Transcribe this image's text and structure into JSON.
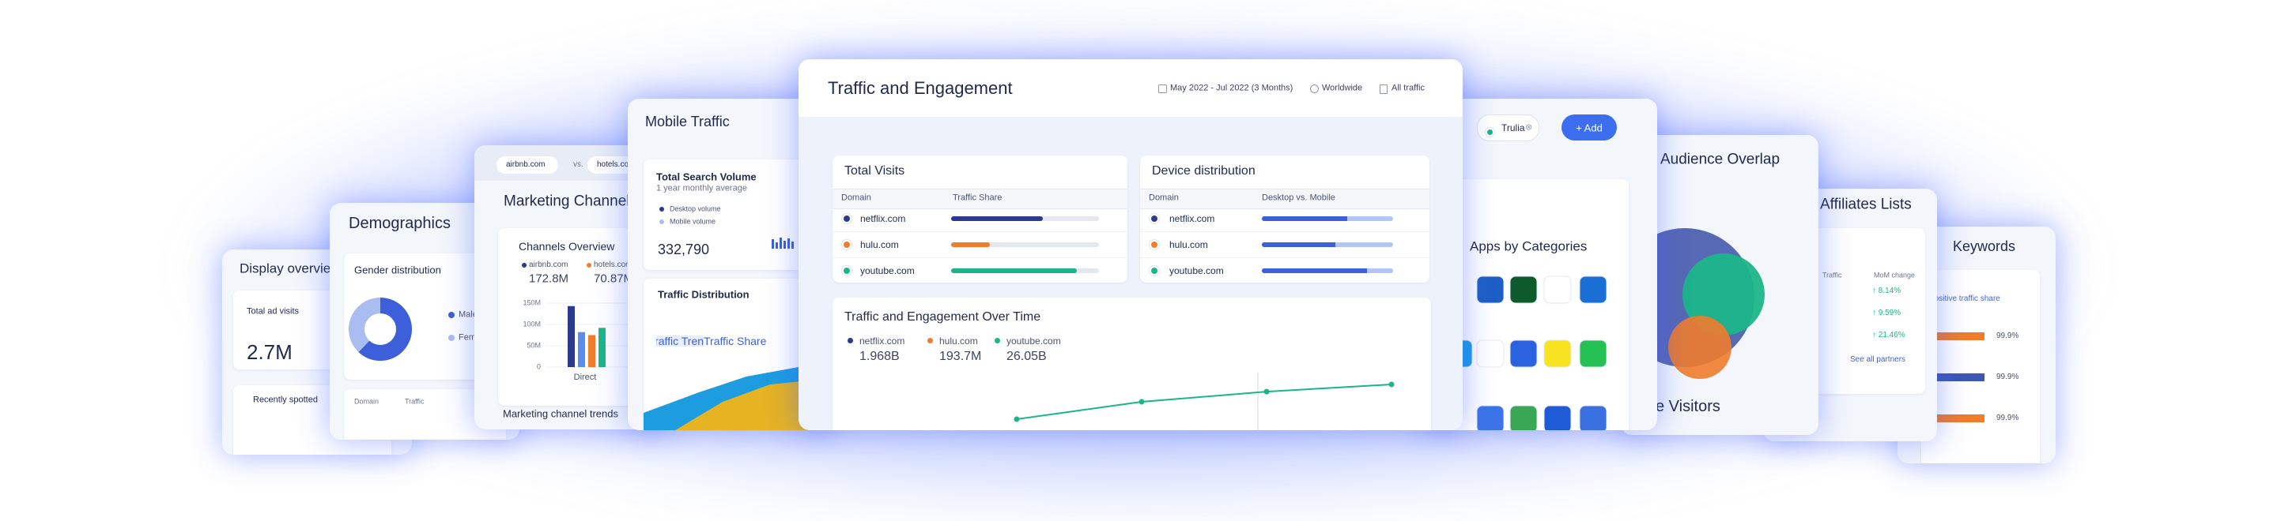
{
  "center": {
    "title": "Traffic and Engagement",
    "date_range": "May 2022 - Jul 2022 (3 Months)",
    "region": "Worldwide",
    "traffic": "All traffic",
    "total_visits": {
      "title": "Total Visits",
      "col_domain": "Domain",
      "col_share": "Traffic Share",
      "rows": [
        {
          "domain": "netflix.com",
          "color": "#2b3a8c",
          "share": 62
        },
        {
          "domain": "hulu.com",
          "color": "#f07c2c",
          "share": 26
        },
        {
          "domain": "youtube.com",
          "color": "#1cb58a",
          "share": 85
        }
      ]
    },
    "device": {
      "title": "Device distribution",
      "col_domain": "Domain",
      "col_split": "Desktop vs. Mobile",
      "desktop_color": "#3d5fd9",
      "mobile_color": "#b3c5f2",
      "rows": [
        {
          "domain": "netflix.com",
          "color": "#2b3a8c",
          "desktop": 65
        },
        {
          "domain": "hulu.com",
          "color": "#f07c2c",
          "desktop": 56
        },
        {
          "domain": "youtube.com",
          "color": "#1cb58a",
          "desktop": 80
        }
      ]
    },
    "over_time": {
      "title": "Traffic and Engagement Over Time",
      "series": [
        {
          "name": "netflix.com",
          "color": "#2b3a8c",
          "total": "1.968B"
        },
        {
          "name": "hulu.com",
          "color": "#f07c2c",
          "total": "193.7M"
        },
        {
          "name": "youtube.com",
          "color": "#1cb58a",
          "total": "26.05B",
          "trend": [
            8.0,
            8.6,
            8.95,
            9.2
          ]
        }
      ]
    }
  },
  "display_overview": {
    "title": "Display overview",
    "metric_label": "Total ad visits",
    "metric_value": "2.7M",
    "list_title": "Recently spotted"
  },
  "demographics": {
    "title": "Demographics",
    "panel_title": "Gender distribution",
    "segments": [
      {
        "name": "Male",
        "color": "#3d5fd9",
        "share": 62
      },
      {
        "name": "Female",
        "color": "#a9bdf0",
        "share": 38
      }
    ],
    "table_cols": [
      "Domain",
      "Traffic"
    ]
  },
  "marketing": {
    "compare_a": "airbnb.com",
    "vs": "vs.",
    "compare_b": "hotels.com",
    "title": "Marketing Channels",
    "panel_title": "Channels Overview",
    "legend": [
      {
        "name": "airbnb.com",
        "color": "#2b3a8c",
        "value": "172.8M"
      },
      {
        "name": "hotels.com",
        "color": "#f07c2c",
        "value": "70.87M"
      }
    ],
    "ylim": [
      0,
      150
    ],
    "yticks": [
      0,
      {
        "value": 50,
        "label": "50M"
      },
      {
        "value": 100,
        "label": "100M"
      },
      {
        "value": 150,
        "label": "150M"
      }
    ],
    "category": "Direct",
    "bars": [
      {
        "color": "#2b3a8c",
        "value": 143
      },
      {
        "color": "#5b8def",
        "value": 82
      },
      {
        "color": "#f07c2c",
        "value": 75
      },
      {
        "color": "#1cb58a",
        "value": 92
      }
    ],
    "footer": "Marketing channel trends"
  },
  "mobile": {
    "title": "Mobile Traffic",
    "panel_title": "Total Search Volume",
    "panel_subtitle": "1 year monthly average",
    "legend": [
      {
        "name": "Desktop volume",
        "color": "#2b3a8c"
      },
      {
        "name": "Mobile volume",
        "color": "#a9bdf0"
      }
    ],
    "value": "332,790",
    "dist_title": "Traffic Distribution",
    "tabs": [
      "Traffic Trend",
      "Traffic Share"
    ]
  },
  "apps": {
    "chip": "Trulia",
    "add": "+ Add",
    "title": "Apps by Categories"
  },
  "audience": {
    "title": "Audience Overlap",
    "footer": "e Visitors"
  },
  "affiliates": {
    "title": "Affiliates Lists",
    "col_traffic": "Traffic",
    "col_mom": "MoM change",
    "changes": [
      "↑ 8.14%",
      "↑ 9.59%",
      "↑ 21.46%"
    ],
    "link": "See all partners"
  },
  "keywords": {
    "title": "Keywords",
    "subtitle": "Positive traffic share",
    "rows": [
      {
        "color": "#f07c2c",
        "share": 99.9,
        "label": "99.9%"
      },
      {
        "color": "#3d57b5",
        "share": 99.9,
        "label": "99.9%"
      },
      {
        "color": "#f07c2c",
        "share": 99.9,
        "label": "99.9%"
      }
    ]
  }
}
